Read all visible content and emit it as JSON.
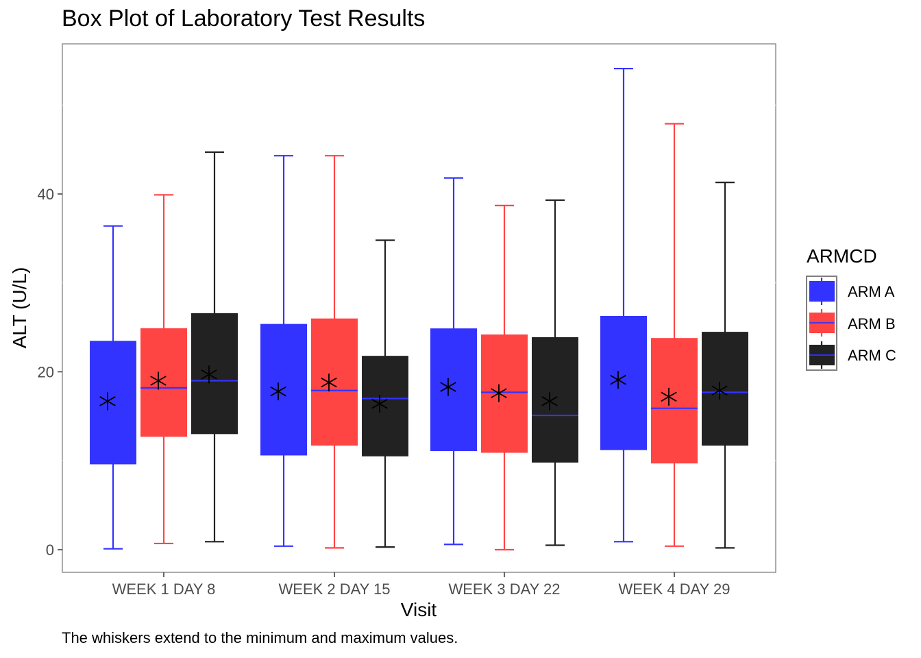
{
  "chart_data": {
    "type": "box",
    "title": "Box Plot of Laboratory Test Results",
    "xlabel": "Visit",
    "ylabel": "ALT (U/L)",
    "caption": "The whiskers extend to the minimum and maximum values.",
    "categories": [
      "WEEK 1 DAY 8",
      "WEEK 2 DAY 15",
      "WEEK 3 DAY 22",
      "WEEK 4 DAY 29"
    ],
    "y_ticks": [
      0,
      20,
      40
    ],
    "ylim": [
      -2.5,
      56.9
    ],
    "grid": false,
    "legend": {
      "title": "ARMCD",
      "placement": "right",
      "entries": [
        "ARM A",
        "ARM B",
        "ARM C"
      ]
    },
    "series": [
      {
        "name": "ARM A",
        "color": "#3333FF",
        "median_color": "#3333FF",
        "boxes": [
          {
            "min": 0.1,
            "q1": 9.6,
            "median": 23.4,
            "q3": 23.4,
            "max": 36.4,
            "mean": 16.7
          },
          {
            "min": 0.4,
            "q1": 10.6,
            "median": 25.3,
            "q3": 25.3,
            "max": 44.3,
            "mean": 17.8
          },
          {
            "min": 0.6,
            "q1": 11.1,
            "median": 24.8,
            "q3": 24.8,
            "max": 41.8,
            "mean": 18.3
          },
          {
            "min": 0.9,
            "q1": 11.2,
            "median": 26.2,
            "q3": 26.2,
            "max": 54.1,
            "mean": 19.1
          }
        ]
      },
      {
        "name": "ARM B",
        "color": "#FF4444",
        "median_color": "#3333FF",
        "boxes": [
          {
            "min": 0.7,
            "q1": 12.7,
            "median": 18.2,
            "q3": 24.9,
            "max": 39.9,
            "mean": 19.0
          },
          {
            "min": 0.2,
            "q1": 11.7,
            "median": 17.9,
            "q3": 26.0,
            "max": 44.3,
            "mean": 18.8
          },
          {
            "min": 0.0,
            "q1": 10.9,
            "median": 17.7,
            "q3": 24.2,
            "max": 38.7,
            "mean": 17.6
          },
          {
            "min": 0.4,
            "q1": 9.7,
            "median": 15.9,
            "q3": 23.8,
            "max": 47.9,
            "mean": 17.2
          }
        ]
      },
      {
        "name": "ARM C",
        "color": "#222222",
        "median_color": "#3333FF",
        "boxes": [
          {
            "min": 0.9,
            "q1": 13.0,
            "median": 19.0,
            "q3": 26.6,
            "max": 44.7,
            "mean": 19.7
          },
          {
            "min": 0.3,
            "q1": 10.5,
            "median": 17.0,
            "q3": 21.8,
            "max": 34.8,
            "mean": 16.4
          },
          {
            "min": 0.5,
            "q1": 9.8,
            "median": 15.1,
            "q3": 23.9,
            "max": 39.3,
            "mean": 16.7
          },
          {
            "min": 0.2,
            "q1": 11.7,
            "median": 17.7,
            "q3": 24.5,
            "max": 41.3,
            "mean": 17.9
          }
        ]
      }
    ]
  }
}
